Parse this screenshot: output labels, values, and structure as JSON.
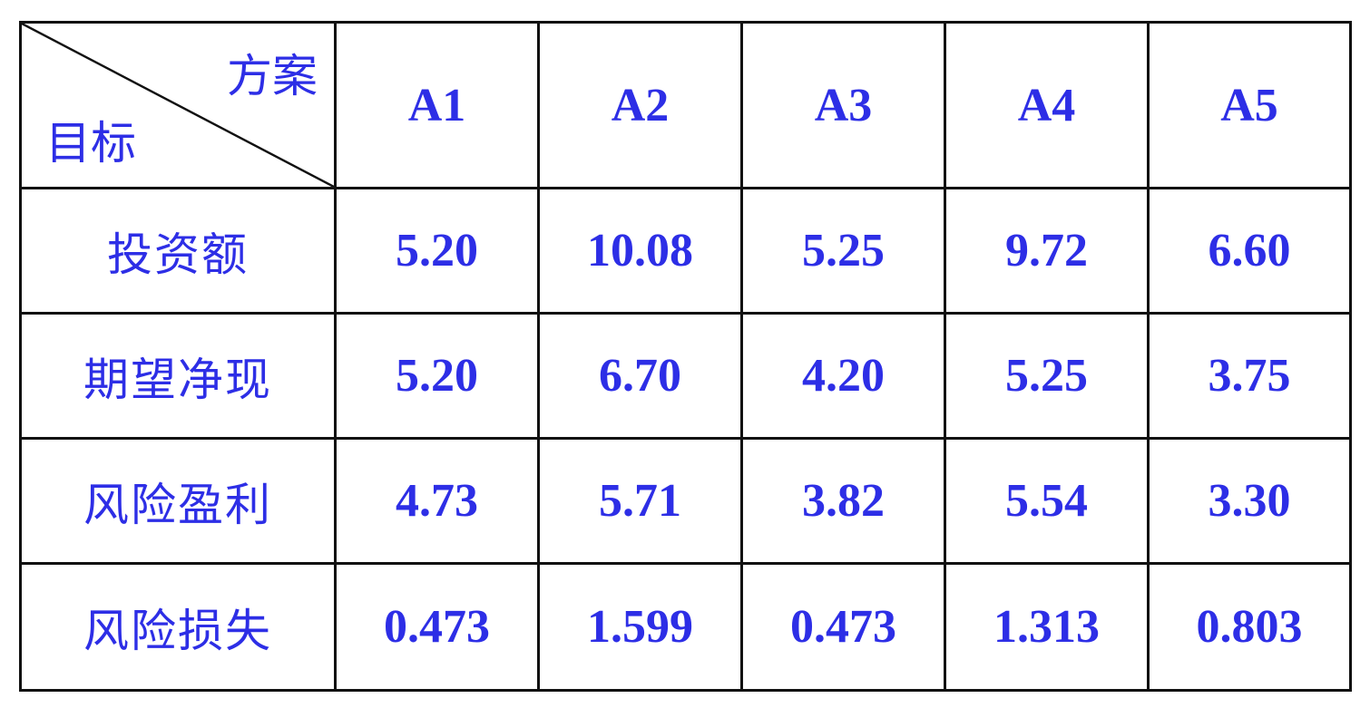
{
  "table": {
    "corner_top": "方案",
    "corner_bottom": "目标",
    "columns": [
      "A1",
      "A2",
      "A3",
      "A4",
      "A5"
    ],
    "rows": [
      {
        "label": "投资额",
        "values": [
          "5.20",
          "10.08",
          "5.25",
          "9.72",
          "6.60"
        ]
      },
      {
        "label": "期望净现",
        "values": [
          "5.20",
          "6.70",
          "4.20",
          "5.25",
          "3.75"
        ]
      },
      {
        "label": "风险盈利",
        "values": [
          "4.73",
          "5.71",
          "3.82",
          "5.54",
          "3.30"
        ]
      },
      {
        "label": "风险损失",
        "values": [
          "0.473",
          "1.599",
          "0.473",
          "1.313",
          "0.803"
        ]
      }
    ]
  }
}
